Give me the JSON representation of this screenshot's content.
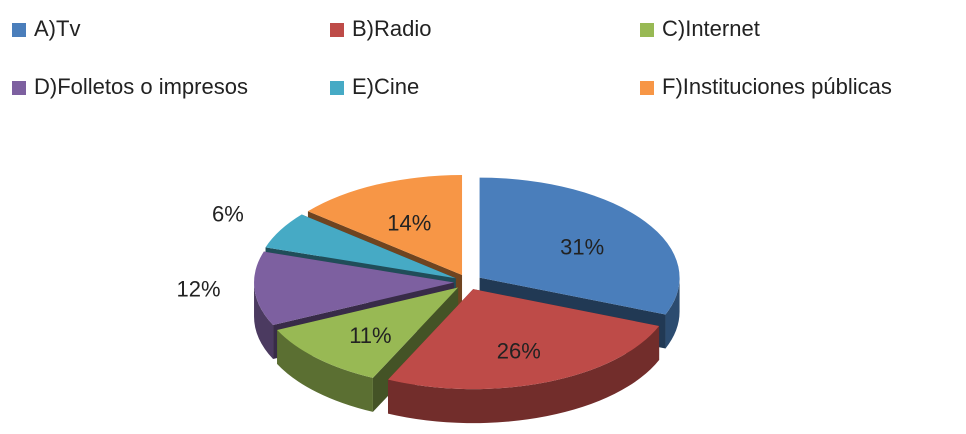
{
  "chart_data": {
    "type": "pie",
    "categories": [
      "A)Tv",
      "B)Radio",
      "C)Internet",
      "D)Folletos o impresos",
      "E)Cine",
      "F)Instituciones públicas"
    ],
    "values": [
      31,
      26,
      11,
      12,
      6,
      14
    ],
    "value_labels": [
      "31%",
      "26%",
      "11%",
      "12%",
      "6%",
      "14%"
    ],
    "colors": [
      "#4a7ebb",
      "#be4b48",
      "#98b954",
      "#7d60a0",
      "#46aac5",
      "#f79646"
    ],
    "legend": "top"
  }
}
